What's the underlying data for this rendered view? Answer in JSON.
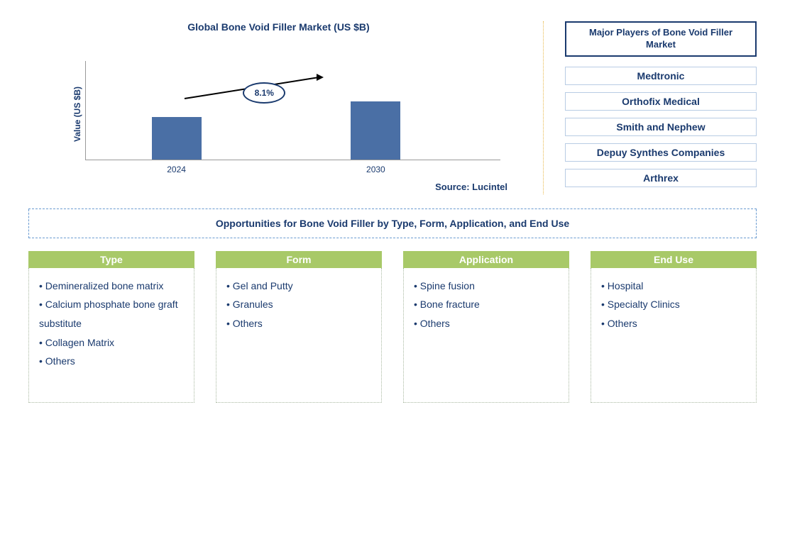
{
  "chart": {
    "title": "Global Bone Void Filler Market (US $B)",
    "ylabel": "Value (US $B)",
    "type": "bar",
    "bars": [
      {
        "label": "2024",
        "value": 60,
        "left_pct": 16
      },
      {
        "label": "2030",
        "value": 82,
        "left_pct": 64
      }
    ],
    "bar_color": "#4a6fa5",
    "growth_label": "8.1%",
    "source": "Source: Lucintel",
    "background_color": "#ffffff",
    "axis_color": "#999999"
  },
  "players": {
    "title": "Major Players of Bone Void Filler Market",
    "items": [
      "Medtronic",
      "Orthofix Medical",
      "Smith and Nephew",
      "Depuy Synthes Companies",
      "Arthrex"
    ]
  },
  "opportunities": {
    "header": "Opportunities for Bone Void Filler by Type, Form, Application, and End Use",
    "columns": [
      {
        "title": "Type",
        "items": [
          "Demineralized bone matrix",
          "Calcium phosphate bone graft substitute",
          "Collagen Matrix",
          "Others"
        ]
      },
      {
        "title": "Form",
        "items": [
          "Gel and Putty",
          "Granules",
          "Others"
        ]
      },
      {
        "title": "Application",
        "items": [
          "Spine fusion",
          "Bone fracture",
          "Others"
        ]
      },
      {
        "title": "End Use",
        "items": [
          "Hospital",
          "Specialty Clinics",
          "Others"
        ]
      }
    ],
    "header_bg": "#a8c968",
    "header_text_color": "#ffffff",
    "item_text_color": "#1a3a6e"
  },
  "colors": {
    "primary_text": "#1a3a6e",
    "player_border": "#b8cce4",
    "dotted_border": "#a8b8a0",
    "dashed_blue": "#6a9bd1",
    "divider_gold": "#e8b84a"
  }
}
